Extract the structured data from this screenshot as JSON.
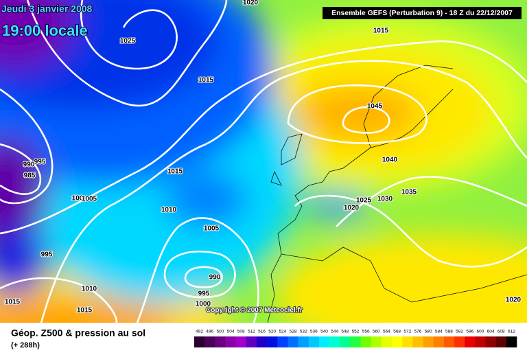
{
  "header": {
    "date": "Jeudi 3 janvier 2008",
    "time": "19:00 locale",
    "model": "Ensemble GEFS (Perturbation 9)  - 18 Z du 22/12/2007"
  },
  "isobar_labels": [
    "1020",
    "1025",
    "1015",
    "1015",
    "1045",
    "1040",
    "990",
    "995",
    "985",
    "1015",
    "100",
    "1005",
    "1010",
    "1025",
    "1030",
    "1020",
    "1035",
    "1005",
    "995",
    "990",
    "995",
    "1010",
    "1000",
    "1015",
    "1015",
    "1020"
  ],
  "copyright": "Copyright © 2007 Meteociel.fr",
  "footer": {
    "title": "Géop. Z500 & pression au sol",
    "lead": "(+ 288h)"
  },
  "legend": {
    "values": [
      492,
      496,
      500,
      504,
      508,
      512,
      516,
      520,
      524,
      528,
      532,
      536,
      540,
      544,
      548,
      552,
      556,
      560,
      564,
      568,
      572,
      576,
      580,
      584,
      588,
      592,
      596,
      600,
      604,
      608,
      612
    ],
    "colors": [
      "#2a0030",
      "#48005a",
      "#680080",
      "#8a00a8",
      "#a000c8",
      "#6000c0",
      "#2000c8",
      "#0010e0",
      "#0040ff",
      "#0070ff",
      "#00a0ff",
      "#00c8ff",
      "#00ecff",
      "#00ffd0",
      "#00ff90",
      "#20ff40",
      "#70ff00",
      "#b0ff00",
      "#e8ff00",
      "#ffff00",
      "#ffe000",
      "#ffc000",
      "#ffa000",
      "#ff8000",
      "#ff5a00",
      "#ff3000",
      "#e80000",
      "#c00000",
      "#900000",
      "#600000",
      "#000000"
    ]
  }
}
